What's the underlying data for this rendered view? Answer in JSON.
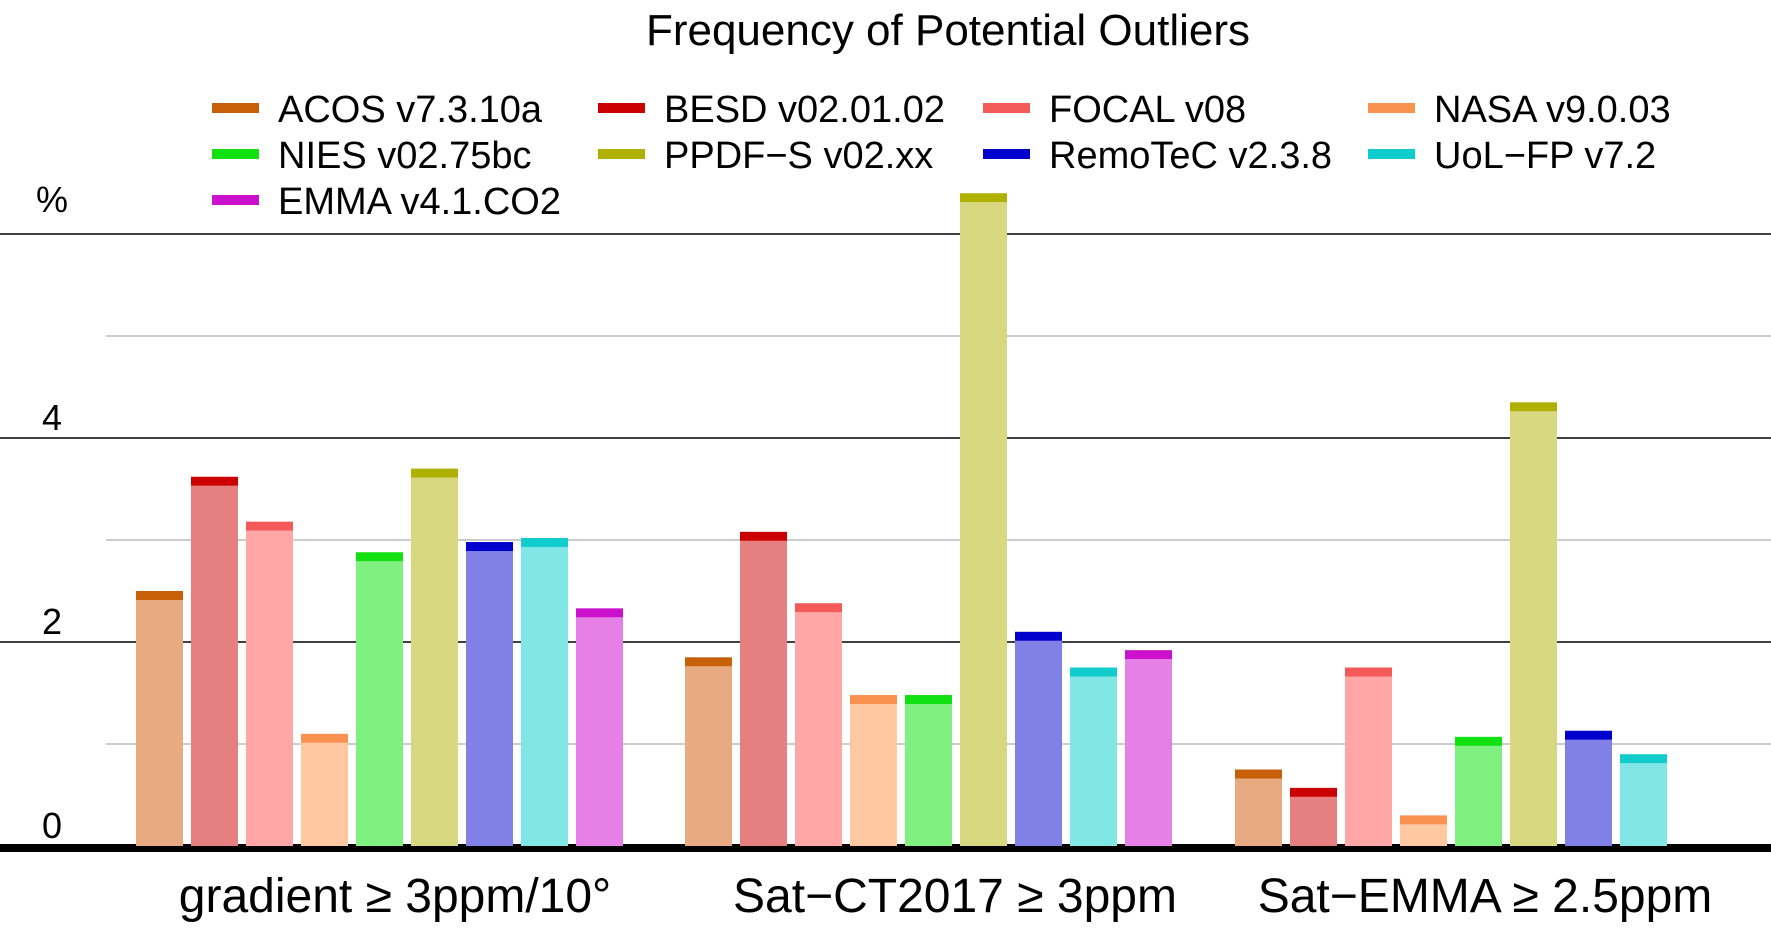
{
  "chart_data": {
    "type": "bar",
    "title": "Frequency of Potential Outliers",
    "ylabel": "%",
    "ylim": [
      0,
      6
    ],
    "yticks": [
      0,
      2,
      4
    ],
    "grid": true,
    "legend_position": "top",
    "categories": [
      "gradient ≥ 3ppm/10°",
      "Sat−CT2017 ≥ 3ppm",
      "Sat−EMMA ≥ 2.5ppm"
    ],
    "series": [
      {
        "name": "ACOS v7.3.10a",
        "color": "#c8600a",
        "fill": "#e8aa80",
        "values": [
          2.5,
          1.85,
          0.75
        ]
      },
      {
        "name": "BESD v02.01.02",
        "color": "#cc0000",
        "fill": "#e68080",
        "values": [
          3.62,
          3.08,
          0.57
        ]
      },
      {
        "name": "FOCAL v08",
        "color": "#f55a5a",
        "fill": "#ffa6a6",
        "values": [
          3.18,
          2.38,
          1.75
        ]
      },
      {
        "name": "NASA v9.0.03",
        "color": "#f9914f",
        "fill": "#ffc8a0",
        "values": [
          1.1,
          1.48,
          0.3
        ]
      },
      {
        "name": "NIES v02.75bc",
        "color": "#11e011",
        "fill": "#80f080",
        "values": [
          2.88,
          1.48,
          1.07
        ]
      },
      {
        "name": "PPDF−S v02.xx",
        "color": "#b0b000",
        "fill": "#d8d880",
        "values": [
          3.7,
          6.4,
          4.35
        ]
      },
      {
        "name": "RemoTeC v2.3.8",
        "color": "#0000cc",
        "fill": "#8080e6",
        "values": [
          2.98,
          2.1,
          1.13
        ]
      },
      {
        "name": "UoL−FP v7.2",
        "color": "#11cccc",
        "fill": "#80e6e6",
        "values": [
          3.02,
          1.75,
          0.9
        ]
      },
      {
        "name": "EMMA v4.1.CO2",
        "color": "#cc11cc",
        "fill": "#e680e6",
        "values": [
          2.33,
          1.92,
          null
        ]
      }
    ]
  }
}
